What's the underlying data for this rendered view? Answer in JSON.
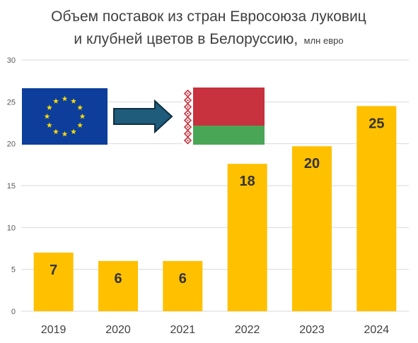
{
  "chart_data": {
    "type": "bar",
    "title_line1": "Объем поставок из стран Евросоюза луковиц",
    "title_line2": "и клубней цветов в Белоруссию,",
    "title_unit": "млн евро",
    "categories": [
      "2019",
      "2020",
      "2021",
      "2022",
      "2023",
      "2024"
    ],
    "values": [
      7.0,
      6.0,
      6.0,
      17.6,
      19.7,
      24.5
    ],
    "data_labels": [
      "7",
      "6",
      "6",
      "18",
      "20",
      "25"
    ],
    "ylim": [
      0,
      30
    ],
    "yticks": [
      "0",
      "5",
      "10",
      "15",
      "20",
      "25",
      "30"
    ],
    "grid": true,
    "legend": "none",
    "colors": {
      "bar": "#FFC000",
      "grid": "#d9d9d9",
      "eu_blue": "#0D3E9B",
      "eu_star": "#FFDD00",
      "arrow_fill": "#1F5B7A",
      "arrow_stroke": "#0E2E40",
      "by_red": "#C8313E",
      "by_green": "#4AA657"
    },
    "decorations": [
      "eu-flag",
      "arrow-right",
      "belarus-flag"
    ]
  }
}
